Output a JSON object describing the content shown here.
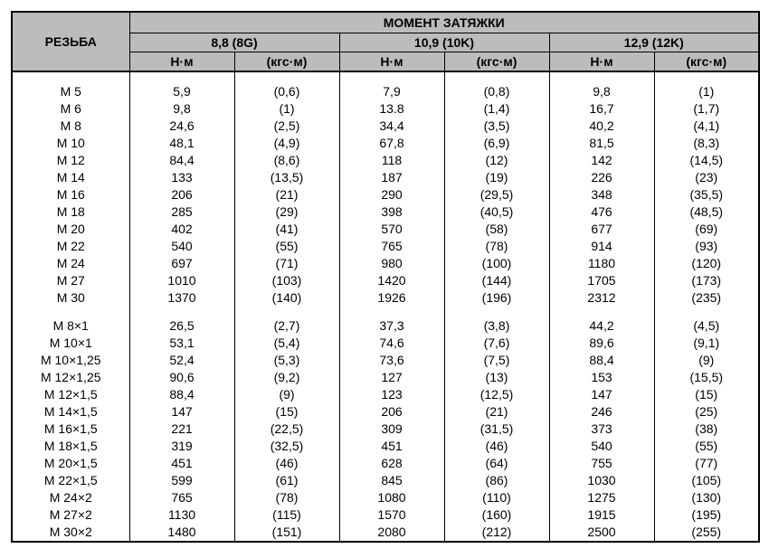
{
  "table": {
    "type": "table",
    "background_color": "#ffffff",
    "header_bg": "#bcbcbc",
    "border_color": "#000000",
    "font_family": "Arial",
    "header_fontsize": 14,
    "body_fontsize": 14,
    "columns": {
      "thread_label": "РЕЗЬБА",
      "title": "МОМЕНТ ЗАТЯЖКИ",
      "grades": [
        "8,8 (8G)",
        "10,9 (10K)",
        "12,9 (12K)"
      ],
      "units": [
        "Н·м",
        "(кгс·м)",
        "Н·м",
        "(кгс·м)",
        "Н·м",
        "(кгс·м)"
      ]
    },
    "groups": [
      {
        "rows": [
          {
            "thread": "M 5",
            "v": [
              "5,9",
              "(0,6)",
              "7,9",
              "(0,8)",
              "9,8",
              "(1)"
            ]
          },
          {
            "thread": "M 6",
            "v": [
              "9,8",
              "(1)",
              "13.8",
              "(1,4)",
              "16,7",
              "(1,7)"
            ]
          },
          {
            "thread": "M 8",
            "v": [
              "24,6",
              "(2,5)",
              "34,4",
              "(3,5)",
              "40,2",
              "(4,1)"
            ]
          },
          {
            "thread": "M 10",
            "v": [
              "48,1",
              "(4,9)",
              "67,8",
              "(6,9)",
              "81,5",
              "(8,3)"
            ]
          },
          {
            "thread": "M 12",
            "v": [
              "84,4",
              "(8,6)",
              "118",
              "(12)",
              "142",
              "(14,5)"
            ]
          },
          {
            "thread": "M 14",
            "v": [
              "133",
              "(13,5)",
              "187",
              "(19)",
              "226",
              "(23)"
            ]
          },
          {
            "thread": "M 16",
            "v": [
              "206",
              "(21)",
              "290",
              "(29,5)",
              "348",
              "(35,5)"
            ]
          },
          {
            "thread": "M 18",
            "v": [
              "285",
              "(29)",
              "398",
              "(40,5)",
              "476",
              "(48,5)"
            ]
          },
          {
            "thread": "M 20",
            "v": [
              "402",
              "(41)",
              "570",
              "(58)",
              "677",
              "(69)"
            ]
          },
          {
            "thread": "M 22",
            "v": [
              "540",
              "(55)",
              "765",
              "(78)",
              "914",
              "(93)"
            ]
          },
          {
            "thread": "M 24",
            "v": [
              "697",
              "(71)",
              "980",
              "(100)",
              "1180",
              "(120)"
            ]
          },
          {
            "thread": "M 27",
            "v": [
              "1010",
              "(103)",
              "1420",
              "(144)",
              "1705",
              "(173)"
            ]
          },
          {
            "thread": "M 30",
            "v": [
              "1370",
              "(140)",
              "1926",
              "(196)",
              "2312",
              "(235)"
            ]
          }
        ]
      },
      {
        "rows": [
          {
            "thread": "M 8×1",
            "v": [
              "26,5",
              "(2,7)",
              "37,3",
              "(3,8)",
              "44,2",
              "(4,5)"
            ]
          },
          {
            "thread": "M 10×1",
            "v": [
              "53,1",
              "(5,4)",
              "74,6",
              "(7,6)",
              "89,6",
              "(9,1)"
            ]
          },
          {
            "thread": "M 10×1,25",
            "v": [
              "52,4",
              "(5,3)",
              "73,6",
              "(7,5)",
              "88,4",
              "(9)"
            ]
          },
          {
            "thread": "M 12×1,25",
            "v": [
              "90,6",
              "(9,2)",
              "127",
              "(13)",
              "153",
              "(15,5)"
            ]
          },
          {
            "thread": "M 12×1,5",
            "v": [
              "88,4",
              "(9)",
              "123",
              "(12,5)",
              "147",
              "(15)"
            ]
          },
          {
            "thread": "M 14×1,5",
            "v": [
              "147",
              "(15)",
              "206",
              "(21)",
              "246",
              "(25)"
            ]
          },
          {
            "thread": "M 16×1,5",
            "v": [
              "221",
              "(22,5)",
              "309",
              "(31,5)",
              "373",
              "(38)"
            ]
          },
          {
            "thread": "M 18×1,5",
            "v": [
              "319",
              "(32,5)",
              "451",
              "(46)",
              "540",
              "(55)"
            ]
          },
          {
            "thread": "M 20×1,5",
            "v": [
              "451",
              "(46)",
              "628",
              "(64)",
              "755",
              "(77)"
            ]
          },
          {
            "thread": "M 22×1,5",
            "v": [
              "599",
              "(61)",
              "845",
              "(86)",
              "1030",
              "(105)"
            ]
          },
          {
            "thread": "M 24×2",
            "v": [
              "765",
              "(78)",
              "1080",
              "(110)",
              "1275",
              "(130)"
            ]
          },
          {
            "thread": "M 27×2",
            "v": [
              "1130",
              "(115)",
              "1570",
              "(160)",
              "1915",
              "(195)"
            ]
          },
          {
            "thread": "M 30×2",
            "v": [
              "1480",
              "(151)",
              "2080",
              "(212)",
              "2500",
              "(255)"
            ]
          }
        ]
      }
    ]
  }
}
